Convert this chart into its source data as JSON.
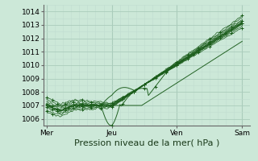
{
  "bg_color": "#cce8d8",
  "grid_color_major": "#aaccbb",
  "grid_color_minor": "#c0ddd0",
  "line_color": "#1a5c1a",
  "xlabel": "Pression niveau de la mer( hPa )",
  "xlabel_fontsize": 8,
  "ylim": [
    1005.5,
    1014.5
  ],
  "yticks": [
    1006,
    1007,
    1008,
    1009,
    1010,
    1011,
    1012,
    1013,
    1014
  ],
  "xtick_labels": [
    "Mer",
    "Jeu",
    "Ven",
    "Sam"
  ],
  "xtick_positions": [
    0,
    48,
    96,
    144
  ],
  "xlim": [
    -2,
    150
  ],
  "tick_fontsize": 6.5
}
